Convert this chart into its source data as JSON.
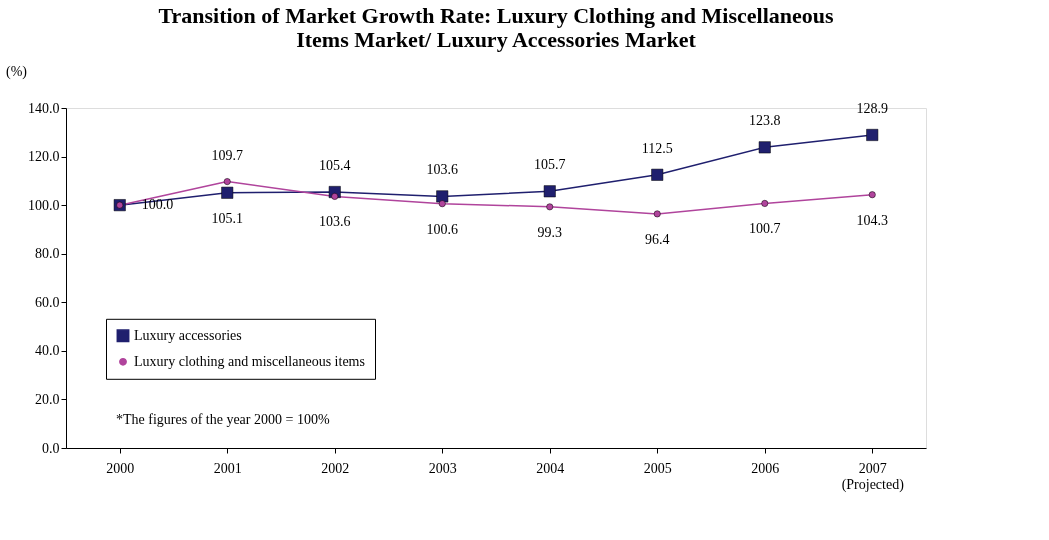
{
  "chart_data": {
    "type": "line",
    "title": [
      "Transition of Market Growth Rate: Luxury Clothing and Miscellaneous",
      "Items Market/ Luxury Accessories Market"
    ],
    "ylabel": "(%)",
    "categories": [
      "2000",
      "2001",
      "2002",
      "2003",
      "2004",
      "2005",
      "2006",
      "2007\n(Projected)"
    ],
    "series": [
      {
        "name": "Luxury accessories",
        "color": "#1f1f6e",
        "marker": "square",
        "values": [
          100.0,
          105.1,
          105.4,
          103.6,
          105.7,
          112.5,
          123.8,
          128.9
        ],
        "value_labels": [
          "100.0",
          "105.1",
          "105.4",
          "103.6",
          "105.7",
          "112.5",
          "123.8",
          "128.9"
        ]
      },
      {
        "name": "Luxury clothing and miscellaneous items",
        "color": "#b0449c",
        "marker": "circle",
        "values": [
          100.0,
          109.7,
          103.6,
          100.6,
          99.3,
          96.4,
          100.7,
          104.3
        ],
        "value_labels": [
          null,
          "109.7",
          "103.6",
          "100.6",
          "99.3",
          "96.4",
          "100.7",
          "104.3"
        ]
      }
    ],
    "ylim": [
      0,
      140
    ],
    "yticks": [
      {
        "value": 0,
        "label": "0.0"
      },
      {
        "value": 20,
        "label": "20.0"
      },
      {
        "value": 40,
        "label": "40.0"
      },
      {
        "value": 60,
        "label": "60.0"
      },
      {
        "value": 80,
        "label": "80.0"
      },
      {
        "value": 100,
        "label": "100.0"
      },
      {
        "value": 120,
        "label": "120.0"
      },
      {
        "value": 140,
        "label": "140.0"
      }
    ],
    "grid": false,
    "legend": "bottom left",
    "annotations": [
      "*The figures of the year 2000 = 100%"
    ]
  }
}
